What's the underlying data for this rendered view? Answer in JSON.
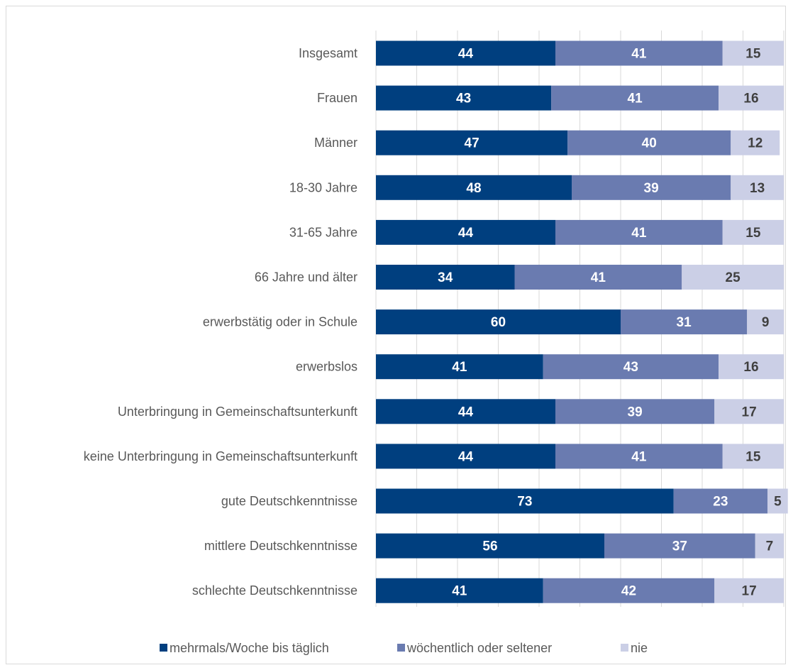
{
  "chart_data": {
    "type": "bar",
    "orientation": "horizontal",
    "stacked": true,
    "unit": "percent",
    "xlim": [
      0,
      100
    ],
    "grid": true,
    "legend_position": "bottom",
    "categories": [
      "Insgesamt",
      "Frauen",
      "Männer",
      "18-30 Jahre",
      "31-65 Jahre",
      "66 Jahre und älter",
      "erwerbstätig oder in Schule",
      "erwerbslos",
      "Unterbringung in Gemeinschaftsunterkunft",
      "keine Unterbringung in Gemeinschaftsunterkunft",
      "gute Deutschkenntnisse",
      "mittlere Deutschkenntnisse",
      "schlechte Deutschkenntnisse"
    ],
    "series": [
      {
        "name": "mehrmals/Woche bis täglich",
        "color": "#003f7f",
        "label_color": "#ffffff",
        "values": [
          44,
          43,
          47,
          48,
          44,
          34,
          60,
          41,
          44,
          44,
          73,
          56,
          41
        ]
      },
      {
        "name": "wöchentlich oder seltener",
        "color": "#6a7bb0",
        "label_color": "#ffffff",
        "values": [
          41,
          41,
          40,
          39,
          41,
          41,
          31,
          43,
          39,
          41,
          23,
          37,
          42
        ]
      },
      {
        "name": "nie",
        "color": "#cbcfe6",
        "label_color": "#404040",
        "values": [
          15,
          16,
          12,
          13,
          15,
          25,
          9,
          16,
          17,
          15,
          5,
          7,
          17
        ]
      }
    ]
  }
}
